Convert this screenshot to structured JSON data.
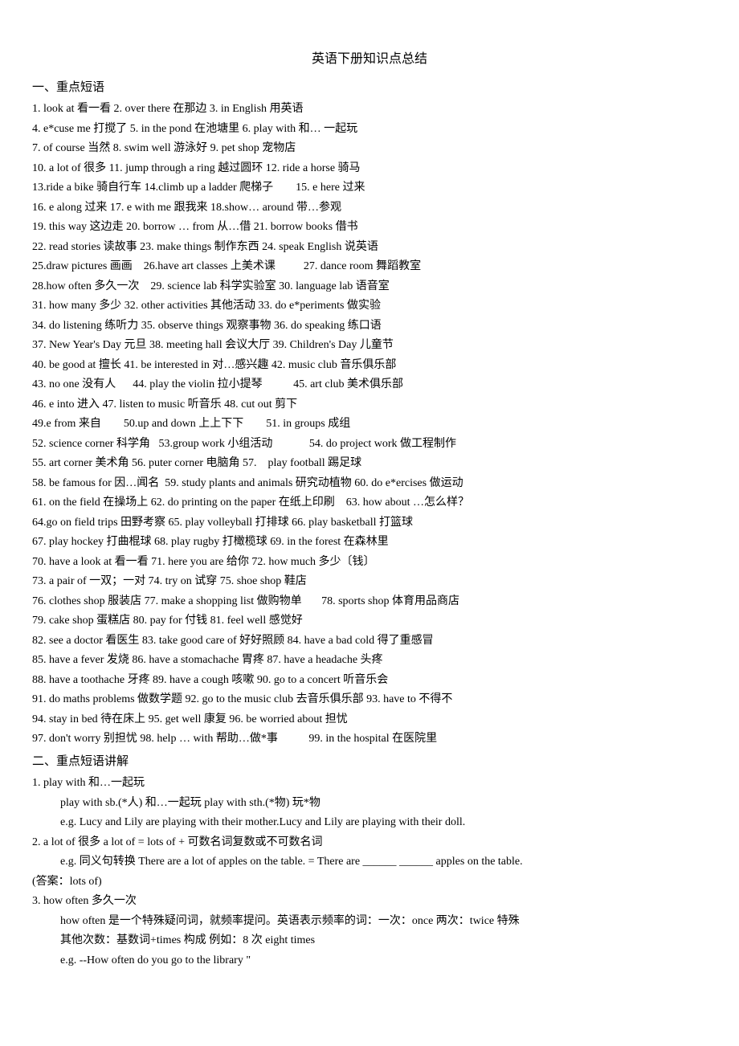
{
  "title": "英语下册知识点总结",
  "section1_heading": "一、重点短语",
  "section1_lines": [
    "1. look at 看一看 2. over there 在那边 3. in English 用英语",
    "4. e*cuse me 打搅了 5. in the pond 在池塘里 6. play with 和… 一起玩",
    "7. of course 当然 8. swim well 游泳好 9. pet shop 宠物店",
    "10. a lot of 很多 11. jump through a ring 越过圆环 12. ride a horse 骑马",
    "13.ride a bike 骑自行车 14.climb up a ladder 爬梯子        15. e here 过来",
    "16. e along 过来 17. e with me 跟我来 18.show… around 带…参观",
    "19. this way 这边走 20. borrow … from 从…借 21. borrow books 借书",
    "22. read stories 读故事 23. make things 制作东西 24. speak English 说英语",
    "25.draw pictures 画画    26.have art classes 上美术课          27. dance room 舞蹈教室",
    "28.how often 多久一次    29. science lab 科学实验室 30. language lab 语音室",
    "31. how many 多少 32. other activities 其他活动 33. do e*periments 做实验",
    "34. do listening 练听力 35. observe things 观察事物 36. do speaking 练口语",
    "37. New Year's Day 元旦 38. meeting hall 会议大厅 39. Children's Day 儿童节",
    "40. be good at 擅长 41. be interested in 对…感兴趣 42. music club 音乐俱乐部",
    "43. no one 没有人      44. play the violin 拉小提琴           45. art club 美术俱乐部",
    "46. e into 进入 47. listen to music 听音乐 48. cut out 剪下",
    "49.e from 来自        50.up and down 上上下下        51. in groups 成组",
    "52. science corner 科学角   53.group work 小组活动             54. do project work 做工程制作",
    "55. art corner 美术角 56. puter corner 电脑角 57.    play football 踢足球",
    "58. be famous for 因…闻名  59. study plants and animals 研究动植物 60. do e*ercises 做运动",
    "61. on the field 在操场上 62. do printing on the paper 在纸上印刷    63. how about …怎么样？",
    "64.go on field trips 田野考察 65. play volleyball 打排球 66. play basketball 打篮球",
    "67. play hockey 打曲棍球 68. play rugby 打橄榄球 69. in the forest 在森林里",
    "70. have a look at 看一看 71. here you are 给你 72. how much 多少〔钱〕",
    "73. a pair of 一双；一对 74. try on 试穿 75. shoe shop 鞋店",
    "76. clothes shop 服装店 77. make a shopping list 做购物单       78. sports shop 体育用品商店",
    "79. cake shop 蛋糕店 80. pay for 付钱 81. feel well 感觉好",
    "82. see a doctor 看医生 83. take good care of 好好照顾 84. have a bad cold 得了重感冒",
    "85. have a fever 发烧 86. have a stomachache 胃疼 87. have a headache 头疼",
    "88. have a toothache 牙疼 89. have a cough 咳嗽 90. go to a concert 听音乐会",
    "91. do maths problems 做数学题 92. go to the music club 去音乐俱乐部 93. have to 不得不",
    "94. stay in bed 待在床上 95. get well 康复 96. be worried about 担忧",
    "97. don't worry 别担忧 98. help … with 帮助…做*事           99. in the hospital 在医院里"
  ],
  "section2_heading": "二、重点短语讲解",
  "section2_blocks": [
    {
      "head": "1. play with 和…一起玩",
      "body": [
        "play with sb.(*人) 和…一起玩 play with sth.(*物) 玩*物",
        "e.g. Lucy and Lily are playing with their mother.Lucy and Lily are playing with their doll."
      ]
    },
    {
      "head": "2. a lot of 很多 a lot of = lots of + 可数名词复数或不可数名词",
      "body": [
        "e.g. 同义句转换 There are a lot of apples on the table. = There are ______ ______ apples on the table."
      ]
    }
  ],
  "answer_line": "(答案：lots of)",
  "section2_blocks_after": [
    {
      "head": "3. how often 多久一次",
      "body": [
        "how often 是一个特殊疑问词，就频率提问。英语表示频率的词：一次：once 两次：twice 特殊",
        "其他次数：基数词+times 构成 例如：8 次 eight times",
        "e.g. --How often do you go to the library \""
      ]
    }
  ]
}
